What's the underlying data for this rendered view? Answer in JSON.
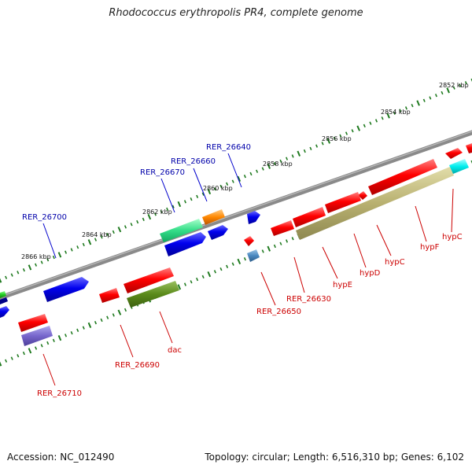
{
  "title": "Rhodococcus erythropolis PR4, complete genome",
  "footer": {
    "accession": "Accession: NC_012490",
    "summary": "Topology: circular; Length: 6,516,310 bp; Genes: 6,102"
  },
  "colors": {
    "backbone": "#8a8a8a",
    "tick": "#1f7a1f",
    "gene_red": "#ff0000",
    "gene_blue": "#0000ee",
    "label_red": "#cc0000",
    "label_blue": "#0000aa"
  },
  "scale_labels": [
    {
      "text": "2852 kbp",
      "kbp": 2852
    },
    {
      "text": "2854 kbp",
      "kbp": 2854
    },
    {
      "text": "2856 kbp",
      "kbp": 2856
    },
    {
      "text": "2858 kbp",
      "kbp": 2858
    },
    {
      "text": "2860 kbp",
      "kbp": 2860
    },
    {
      "text": "2862 kbp",
      "kbp": 2862
    },
    {
      "text": "2864 kbp",
      "kbp": 2864
    },
    {
      "text": "2866 kbp",
      "kbp": 2866
    }
  ],
  "forward_genes": [
    {
      "label": "RER_26640",
      "color": "#0000ee",
      "shape": "arrow"
    },
    {
      "label": "RER_26660",
      "color": "#0000ee",
      "shape": "arrow"
    },
    {
      "label": "RER_26670",
      "color": "#0000ee",
      "shape": "arrow"
    },
    {
      "label": "RER_26700",
      "color": "#0000ee",
      "shape": "arrow"
    }
  ],
  "forward_features": [
    {
      "color": "#ff8800"
    },
    {
      "color": "#33dd88"
    },
    {
      "color": "#0000ee"
    },
    {
      "color": "#0000ee"
    },
    {
      "color": "#22cc22"
    }
  ],
  "reverse_genes": [
    {
      "label": "hypC",
      "color": "#ff0000"
    },
    {
      "label": "hypF",
      "color": "#ff0000"
    },
    {
      "label": "hypC",
      "color": "#ff0000"
    },
    {
      "label": "hypD",
      "color": "#ff0000"
    },
    {
      "label": "hypE",
      "color": "#ff0000"
    },
    {
      "label": "RER_26630",
      "color": "#ff0000"
    },
    {
      "label": "RER_26650",
      "color": "#ff0000"
    },
    {
      "label": "dac",
      "color": "#ff0000"
    },
    {
      "label": "RER_26690",
      "color": "#ff0000"
    },
    {
      "label": "RER_26710",
      "color": "#ff0000"
    }
  ],
  "reverse_features": [
    {
      "color": "#b8b070"
    },
    {
      "color": "#00eeee"
    },
    {
      "color": "#4a88c0"
    },
    {
      "color": "#5a8a1a"
    },
    {
      "color": "#7766cc"
    }
  ]
}
